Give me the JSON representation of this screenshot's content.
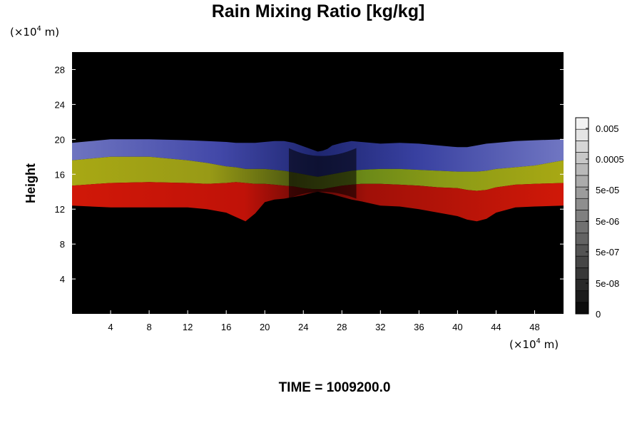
{
  "title": "Rain Mixing Ratio [kg/kg]",
  "time_label": "TIME = 1009200.0",
  "colors": {
    "background": "#000000",
    "band_blue": "#3a44a8",
    "band_green": "#8a9a18",
    "band_yellow": "#a8a814",
    "band_red": "#cc1408"
  },
  "chart_data": {
    "type": "heatmap",
    "title": "Rain Mixing Ratio [kg/kg]",
    "xlabel": "",
    "ylabel": "Height",
    "x_unit_prefix": "(×10",
    "x_unit_exp": "4",
    "x_unit_suffix": " m)",
    "y_unit_prefix": "(×10",
    "y_unit_exp": "4",
    "y_unit_suffix": " m)",
    "xlim": [
      0,
      51
    ],
    "ylim": [
      0,
      30
    ],
    "x_ticks": [
      4,
      8,
      12,
      16,
      20,
      24,
      28,
      32,
      36,
      40,
      44,
      48
    ],
    "y_ticks": [
      4,
      8,
      12,
      16,
      20,
      24,
      28
    ],
    "colorbar": {
      "ticks": [
        "0.005",
        "0.0005",
        "5e-05",
        "5e-06",
        "5e-07",
        "5e-08",
        "0"
      ],
      "levels": 17
    },
    "profile": {
      "x": [
        0,
        4,
        8,
        12,
        14,
        16,
        17,
        18,
        19,
        20,
        21,
        22,
        23,
        24,
        25,
        25.5,
        26,
        26.5,
        27,
        28,
        29,
        30,
        32,
        34,
        36,
        38,
        40,
        41,
        42,
        43,
        44,
        46,
        48,
        51
      ],
      "red_bottom": [
        12.4,
        12.2,
        12.2,
        12.2,
        12.0,
        11.6,
        11.1,
        10.6,
        11.5,
        12.8,
        13.1,
        13.2,
        13.4,
        13.6,
        13.9,
        14.0,
        13.9,
        13.8,
        13.7,
        13.4,
        13.1,
        12.9,
        12.4,
        12.3,
        12.0,
        11.6,
        11.2,
        10.8,
        10.6,
        10.9,
        11.6,
        12.2,
        12.3,
        12.4
      ],
      "red_top": [
        14.7,
        15.0,
        15.1,
        15.0,
        14.9,
        15.0,
        15.1,
        15.0,
        14.9,
        14.9,
        14.8,
        14.7,
        14.6,
        14.4,
        14.3,
        14.3,
        14.3,
        14.4,
        14.5,
        14.7,
        14.8,
        14.9,
        14.9,
        14.8,
        14.7,
        14.5,
        14.4,
        14.2,
        14.1,
        14.2,
        14.5,
        14.8,
        14.9,
        15.0
      ],
      "yellow_top": [
        17.6,
        18.0,
        18.0,
        17.6,
        17.3,
        16.9,
        16.8,
        16.6,
        16.6,
        16.6,
        16.5,
        16.4,
        16.2,
        16.0,
        15.8,
        15.7,
        15.8,
        15.9,
        16.0,
        16.2,
        16.4,
        16.5,
        16.6,
        16.6,
        16.5,
        16.4,
        16.3,
        16.3,
        16.3,
        16.4,
        16.6,
        16.8,
        17.0,
        17.6
      ],
      "blue_top": [
        19.6,
        20.0,
        20.0,
        19.9,
        19.8,
        19.7,
        19.6,
        19.6,
        19.6,
        19.7,
        19.8,
        19.8,
        19.6,
        19.2,
        18.8,
        18.6,
        18.7,
        18.9,
        19.3,
        19.6,
        19.8,
        19.7,
        19.5,
        19.6,
        19.5,
        19.3,
        19.1,
        19.1,
        19.3,
        19.5,
        19.6,
        19.8,
        19.9,
        20.0
      ]
    }
  }
}
